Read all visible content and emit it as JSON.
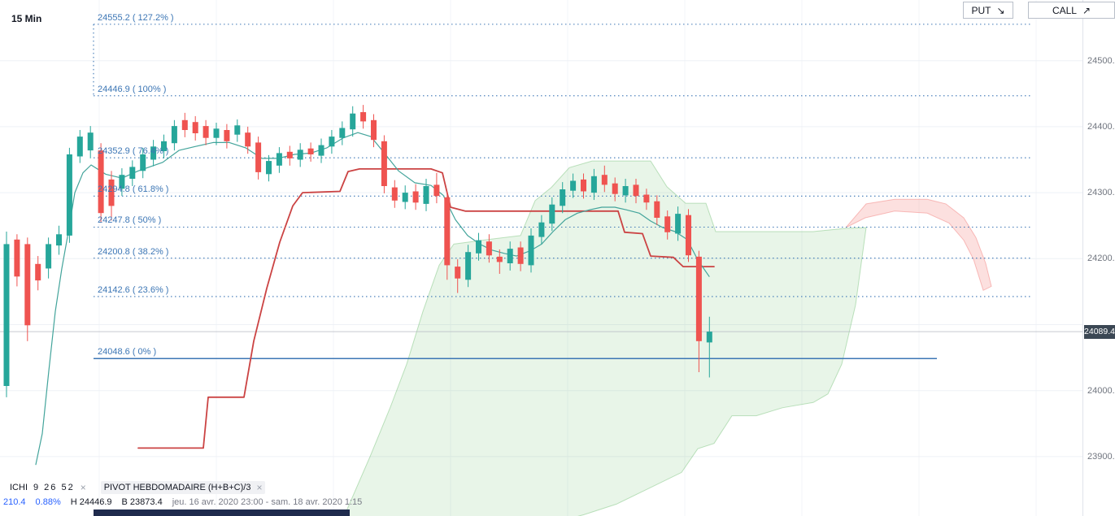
{
  "header": {
    "timeframe": "15 Min",
    "put_button": {
      "label": "PUT",
      "arrow": "↘"
    },
    "call_button": {
      "label": "CALL",
      "arrow": "↗"
    }
  },
  "indicators": {
    "ichimoku": {
      "name": "ICHI",
      "params": "9 26 52",
      "close": "×"
    },
    "pivot": {
      "name": "PIVOT HEBDOMADAIRE (H+B+C)/3",
      "close": "×"
    }
  },
  "legend": {
    "change": "210.4",
    "change_pct": "0.88%",
    "high_label": "H",
    "high": "24446.9",
    "low_label": "B",
    "low": "23873.4",
    "daterange": "jeu. 16 avr. 2020 23:00 - sam. 18 avr. 2020 1:15"
  },
  "axis": {
    "ticks": [
      {
        "price": 24500,
        "label": "24500.0"
      },
      {
        "price": 24400,
        "label": "24400.0"
      },
      {
        "price": 24300,
        "label": "24300.0"
      },
      {
        "price": 24200,
        "label": "24200.0"
      },
      {
        "price": 24000,
        "label": "24000.0"
      },
      {
        "price": 23900,
        "label": "23900.0"
      }
    ],
    "last_price": "24089.4"
  },
  "chart_data": {
    "type": "candlestick",
    "timeframe": "15 Min",
    "ylim": [
      23810,
      24592
    ],
    "last_price": 24089.4,
    "x0": 8,
    "spacing": 12.9,
    "candle_width": 7,
    "grid": {
      "h_prices": [
        24500,
        24400,
        24300,
        24200,
        24100,
        24000,
        23900
      ],
      "v_x": [
        122,
        266,
        410,
        554,
        698,
        842,
        986,
        1130,
        1274
      ]
    },
    "colors": {
      "up": "#26a69a",
      "down": "#ef5350",
      "fib": "#3c76b5",
      "red_line": "#cb4343",
      "teal_line": "#43a49b",
      "cloud_up": "rgba(76,175,80,0.13)",
      "cloud_up_edge": "rgba(76,175,80,0.35)",
      "cloud_down": "rgba(239,83,80,0.18)",
      "cloud_down_edge": "rgba(239,83,80,0.35)",
      "grid": "#eef1f6",
      "price_line": "#b8bcc4",
      "price_tag_bg": "#3b4754"
    },
    "fib_levels": [
      {
        "price": 24555.2,
        "pct": "127.2%",
        "label": "24555.2 ( 127.2% )",
        "style": "dotted",
        "x1": 115,
        "x2": 1268
      },
      {
        "price": 24446.9,
        "pct": "100%",
        "label": "24446.9 ( 100% )",
        "style": "dotted",
        "x1": 115,
        "x2": 1268
      },
      {
        "price": 24352.9,
        "pct": "76.4%",
        "label": "24352.9 ( 76.4% )",
        "style": "dotted",
        "x1": 115,
        "x2": 1268
      },
      {
        "price": 24294.8,
        "pct": "61.8%",
        "label": "24294.8 ( 61.8% )",
        "style": "dotted",
        "x1": 115,
        "x2": 1268
      },
      {
        "price": 24247.8,
        "pct": "50%",
        "label": "24247.8 ( 50% )",
        "style": "dotted",
        "x1": 115,
        "x2": 1268
      },
      {
        "price": 24200.8,
        "pct": "38.2%",
        "label": "24200.8 ( 38.2% )",
        "style": "dotted",
        "x1": 115,
        "x2": 1268
      },
      {
        "price": 24142.6,
        "pct": "23.6%",
        "label": "24142.6 ( 23.6% )",
        "style": "dotted",
        "x1": 115,
        "x2": 1268
      },
      {
        "price": 24048.6,
        "pct": "0%",
        "label": "24048.6 ( 0% )",
        "style": "solid",
        "x1": 115,
        "x2": 1152
      }
    ],
    "fib_connector": {
      "x": 115,
      "from_price": 24555.2,
      "to_price": 24446.9
    },
    "candles": [
      [
        24007,
        24241,
        23990,
        24222
      ],
      [
        24229,
        24237,
        24158,
        24173
      ],
      [
        24222,
        24232,
        24075,
        24099
      ],
      [
        24192,
        24204,
        24152,
        24167
      ],
      [
        24185,
        24232,
        24170,
        24222
      ],
      [
        24220,
        24250,
        24206,
        24237
      ],
      [
        24235,
        24368,
        24224,
        24358
      ],
      [
        24355,
        24395,
        24345,
        24385
      ],
      [
        24364,
        24401,
        24352,
        24391
      ],
      [
        24364,
        24375,
        24255,
        24269
      ],
      [
        24320,
        24333,
        24258,
        24280
      ],
      [
        24306,
        24337,
        24295,
        24327
      ],
      [
        24321,
        24349,
        24310,
        24339
      ],
      [
        24333,
        24368,
        24322,
        24358
      ],
      [
        24350,
        24380,
        24340,
        24370
      ],
      [
        24363,
        24388,
        24352,
        24378
      ],
      [
        24375,
        24410,
        24364,
        24401
      ],
      [
        24410,
        24421,
        24384,
        24395
      ],
      [
        24407,
        24416,
        24379,
        24390
      ],
      [
        24401,
        24410,
        24372,
        24383
      ],
      [
        24383,
        24406,
        24372,
        24397
      ],
      [
        24395,
        24404,
        24367,
        24378
      ],
      [
        24388,
        24411,
        24377,
        24402
      ],
      [
        24391,
        24400,
        24359,
        24370
      ],
      [
        24376,
        24385,
        24320,
        24331
      ],
      [
        24328,
        24357,
        24317,
        24348
      ],
      [
        24341,
        24369,
        24330,
        24360
      ],
      [
        24362,
        24371,
        24341,
        24352
      ],
      [
        24350,
        24375,
        24339,
        24365
      ],
      [
        24367,
        24376,
        24347,
        24358
      ],
      [
        24356,
        24382,
        24345,
        24372
      ],
      [
        24370,
        24395,
        24359,
        24385
      ],
      [
        24383,
        24408,
        24372,
        24398
      ],
      [
        24396,
        24431,
        24385,
        24420
      ],
      [
        24422,
        24433,
        24397,
        24408
      ],
      [
        24410,
        24419,
        24369,
        24380
      ],
      [
        24378,
        24387,
        24299,
        24310
      ],
      [
        24308,
        24319,
        24277,
        24288
      ],
      [
        24286,
        24311,
        24275,
        24300
      ],
      [
        24302,
        24313,
        24274,
        24285
      ],
      [
        24283,
        24321,
        24272,
        24310
      ],
      [
        24312,
        24330,
        24284,
        24295
      ],
      [
        24293,
        24302,
        24168,
        24190
      ],
      [
        24188,
        24199,
        24148,
        24170
      ],
      [
        24168,
        24221,
        24157,
        24210
      ],
      [
        24208,
        24239,
        24197,
        24228
      ],
      [
        24226,
        24237,
        24194,
        24205
      ],
      [
        24203,
        24214,
        24177,
        24195
      ],
      [
        24193,
        24226,
        24182,
        24215
      ],
      [
        24217,
        24226,
        24181,
        24192
      ],
      [
        24190,
        24246,
        24179,
        24235
      ],
      [
        24233,
        24266,
        24222,
        24255
      ],
      [
        24253,
        24293,
        24242,
        24282
      ],
      [
        24280,
        24316,
        24269,
        24305
      ],
      [
        24303,
        24329,
        24292,
        24318
      ],
      [
        24320,
        24329,
        24291,
        24302
      ],
      [
        24300,
        24336,
        24289,
        24325
      ],
      [
        24327,
        24341,
        24301,
        24312
      ],
      [
        24314,
        24323,
        24287,
        24298
      ],
      [
        24296,
        24321,
        24285,
        24310
      ],
      [
        24312,
        24321,
        24284,
        24295
      ],
      [
        24297,
        24306,
        24274,
        24285
      ],
      [
        24287,
        24296,
        24251,
        24262
      ],
      [
        24264,
        24273,
        24229,
        24240
      ],
      [
        24238,
        24279,
        24227,
        24268
      ],
      [
        24266,
        24275,
        24195,
        24205
      ],
      [
        24203,
        24212,
        24028,
        24075
      ],
      [
        24073,
        24112,
        24020,
        24089.4
      ]
    ],
    "lines": {
      "pivot_weekly": {
        "name": "PIVOT HEBDOMADAIRE (H+B+C)/3",
        "points": [
          [
            170,
            23913
          ],
          [
            250,
            23913
          ],
          [
            256,
            23990
          ],
          [
            300,
            23990
          ],
          [
            312,
            24075
          ],
          [
            328,
            24155
          ],
          [
            344,
            24225
          ],
          [
            360,
            24280
          ],
          [
            372,
            24300
          ],
          [
            418,
            24302
          ],
          [
            428,
            24332
          ],
          [
            442,
            24336
          ],
          [
            530,
            24336
          ],
          [
            544,
            24330
          ],
          [
            554,
            24278
          ],
          [
            572,
            24272
          ],
          [
            760,
            24272
          ],
          [
            768,
            24240
          ],
          [
            790,
            24238
          ],
          [
            800,
            24204
          ],
          [
            828,
            24202
          ],
          [
            840,
            24188
          ],
          [
            878,
            24188
          ]
        ]
      },
      "baseline": {
        "name": "ICHI baseline",
        "points": [
          [
            44,
            23888
          ],
          [
            52,
            23935
          ],
          [
            60,
            24030
          ],
          [
            68,
            24120
          ],
          [
            76,
            24185
          ],
          [
            84,
            24240
          ],
          [
            92,
            24300
          ],
          [
            102,
            24330
          ],
          [
            112,
            24342
          ],
          [
            130,
            24328
          ],
          [
            150,
            24322
          ],
          [
            170,
            24333
          ],
          [
            200,
            24346
          ],
          [
            220,
            24364
          ],
          [
            240,
            24370
          ],
          [
            262,
            24376
          ],
          [
            282,
            24376
          ],
          [
            302,
            24368
          ],
          [
            322,
            24352
          ],
          [
            342,
            24352
          ],
          [
            362,
            24358
          ],
          [
            382,
            24360
          ],
          [
            402,
            24368
          ],
          [
            422,
            24383
          ],
          [
            440,
            24391
          ],
          [
            456,
            24385
          ],
          [
            470,
            24364
          ],
          [
            490,
            24333
          ],
          [
            510,
            24315
          ],
          [
            530,
            24311
          ],
          [
            545,
            24296
          ],
          [
            560,
            24259
          ],
          [
            575,
            24235
          ],
          [
            590,
            24222
          ],
          [
            605,
            24213
          ],
          [
            620,
            24208
          ],
          [
            635,
            24204
          ],
          [
            652,
            24212
          ],
          [
            666,
            24222
          ],
          [
            680,
            24241
          ],
          [
            695,
            24259
          ],
          [
            710,
            24269
          ],
          [
            725,
            24274
          ],
          [
            740,
            24278
          ],
          [
            756,
            24278
          ],
          [
            770,
            24274
          ],
          [
            786,
            24269
          ],
          [
            800,
            24257
          ],
          [
            815,
            24247
          ],
          [
            830,
            24241
          ],
          [
            845,
            24229
          ],
          [
            858,
            24198
          ],
          [
            872,
            24173
          ]
        ]
      }
    },
    "clouds": {
      "bullish": {
        "points": [
          [
            425,
            23815
          ],
          [
            455,
            23900
          ],
          [
            480,
            23975
          ],
          [
            500,
            24040
          ],
          [
            520,
            24120
          ],
          [
            540,
            24190
          ],
          [
            558,
            24222
          ],
          [
            600,
            24229
          ],
          [
            640,
            24235
          ],
          [
            658,
            24288
          ],
          [
            678,
            24308
          ],
          [
            700,
            24338
          ],
          [
            728,
            24348
          ],
          [
            800,
            24348
          ],
          [
            820,
            24309
          ],
          [
            843,
            24284
          ],
          [
            868,
            24284
          ],
          [
            880,
            24241
          ],
          [
            1000,
            24241
          ],
          [
            1040,
            24246
          ],
          [
            1065,
            24247
          ],
          [
            1052,
            24130
          ],
          [
            1035,
            24040
          ],
          [
            1018,
            23995
          ],
          [
            1000,
            23982
          ],
          [
            962,
            23974
          ],
          [
            930,
            23962
          ],
          [
            900,
            23962
          ],
          [
            878,
            23920
          ],
          [
            858,
            23912
          ],
          [
            838,
            23876
          ],
          [
            798,
            23852
          ],
          [
            758,
            23828
          ],
          [
            718,
            23812
          ],
          [
            700,
            23806
          ],
          [
            432,
            23806
          ]
        ]
      },
      "bearish": {
        "points": [
          [
            1040,
            24247
          ],
          [
            1065,
            24283
          ],
          [
            1100,
            24290
          ],
          [
            1140,
            24290
          ],
          [
            1163,
            24283
          ],
          [
            1185,
            24262
          ],
          [
            1200,
            24232
          ],
          [
            1212,
            24193
          ],
          [
            1219,
            24158
          ],
          [
            1209,
            24152
          ],
          [
            1197,
            24199
          ],
          [
            1185,
            24228
          ],
          [
            1167,
            24254
          ],
          [
            1140,
            24269
          ],
          [
            1100,
            24272
          ],
          [
            1064,
            24262
          ]
        ]
      }
    }
  }
}
